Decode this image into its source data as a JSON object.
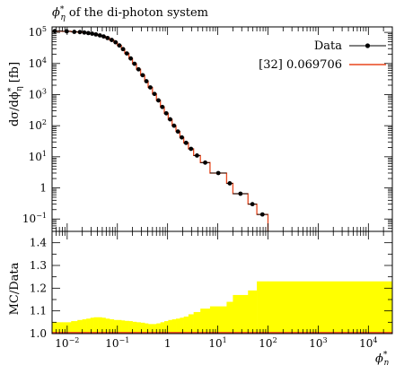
{
  "chart_data": {
    "type": "step",
    "title": "ϕ*η of the di-photon system",
    "title_parts": {
      "main": "ϕ",
      "sup": "*",
      "sub": "η",
      "rest": " of the di-photon system"
    },
    "xlabel": "ϕ*η",
    "xlabel_parts": {
      "main": "ϕ",
      "sup": "*",
      "sub": "η"
    },
    "ylabel": "dσ/dϕ*η [fb]",
    "ylabel_parts": {
      "pre": "dσ/dϕ",
      "sup": "*",
      "sub": "η",
      "post": " [fb]"
    },
    "ratio_ylabel": "MC/Data",
    "xscale": "log",
    "yscale": "log",
    "xlim": [
      0.005,
      30000
    ],
    "ylim": [
      0.04,
      150000
    ],
    "ratio_ylim": [
      1.0,
      1.45
    ],
    "x_ticks": [
      0.01,
      0.1,
      1,
      10,
      100,
      1000,
      10000
    ],
    "x_tick_labels": [
      "10⁻²",
      "10⁻¹",
      "1",
      "10¹",
      "10²",
      "10³",
      "10⁴"
    ],
    "x_tick_parts": [
      {
        "base": "10",
        "exp": "−2"
      },
      {
        "base": "10",
        "exp": "−1"
      },
      {
        "base": "1",
        "exp": ""
      },
      {
        "base": "10",
        "exp": "1"
      },
      {
        "base": "10",
        "exp": "2"
      },
      {
        "base": "10",
        "exp": "3"
      },
      {
        "base": "10",
        "exp": "4"
      }
    ],
    "y_ticks": [
      0.1,
      1,
      10,
      100,
      1000,
      10000,
      100000
    ],
    "y_tick_parts": [
      {
        "base": "10",
        "exp": "−1"
      },
      {
        "base": "1",
        "exp": ""
      },
      {
        "base": "10",
        "exp": "1"
      },
      {
        "base": "10",
        "exp": "2"
      },
      {
        "base": "10",
        "exp": "3"
      },
      {
        "base": "10",
        "exp": "4"
      },
      {
        "base": "10",
        "exp": "5"
      }
    ],
    "ratio_y_ticks": [
      1.0,
      1.1,
      1.2,
      1.3,
      1.4
    ],
    "ratio_y_tick_labels": [
      "1.0",
      "1.1",
      "1.2",
      "1.3",
      "1.4"
    ],
    "legend_position": "top-right",
    "series": [
      {
        "name": "Data",
        "style": "points-with-errors",
        "color": "#000000",
        "bins": [
          [
            0.004,
            0.008,
            110000
          ],
          [
            0.008,
            0.012,
            108000
          ],
          [
            0.012,
            0.016,
            104000
          ],
          [
            0.016,
            0.02,
            102000
          ],
          [
            0.02,
            0.024,
            99000
          ],
          [
            0.024,
            0.029,
            95000
          ],
          [
            0.029,
            0.034,
            91000
          ],
          [
            0.034,
            0.041,
            86000
          ],
          [
            0.041,
            0.049,
            80000
          ],
          [
            0.049,
            0.058,
            74000
          ],
          [
            0.058,
            0.07,
            66000
          ],
          [
            0.07,
            0.085,
            57000
          ],
          [
            0.085,
            0.1,
            48000
          ],
          [
            0.1,
            0.12,
            38000
          ],
          [
            0.12,
            0.14,
            29000
          ],
          [
            0.14,
            0.17,
            21000
          ],
          [
            0.17,
            0.2,
            14500
          ],
          [
            0.2,
            0.24,
            9800
          ],
          [
            0.24,
            0.29,
            6500
          ],
          [
            0.29,
            0.35,
            4200
          ],
          [
            0.35,
            0.41,
            2700
          ],
          [
            0.41,
            0.5,
            1700
          ],
          [
            0.5,
            0.6,
            1050
          ],
          [
            0.6,
            0.72,
            650
          ],
          [
            0.72,
            0.86,
            400
          ],
          [
            0.86,
            1.03,
            250
          ],
          [
            1.03,
            1.23,
            160
          ],
          [
            1.23,
            1.47,
            100
          ],
          [
            1.47,
            1.76,
            65
          ],
          [
            1.76,
            2.1,
            42
          ],
          [
            2.1,
            2.6,
            28
          ],
          [
            2.6,
            3.3,
            18
          ],
          [
            3.3,
            4.5,
            11
          ],
          [
            4.5,
            7.0,
            6.5
          ],
          [
            7.0,
            15.0,
            3.0
          ],
          [
            15.0,
            20.0,
            1.4
          ],
          [
            20.0,
            40.0,
            0.65
          ],
          [
            40.0,
            60.0,
            0.3
          ],
          [
            60.0,
            100.0,
            0.14
          ]
        ]
      },
      {
        "name": "[32] 0.069706",
        "style": "step",
        "color": "#e8471d",
        "ratio_center": 1.0,
        "uncertainty_color": "#ffff00",
        "ratio_band_upper": [
          1.05,
          1.05,
          1.055,
          1.06,
          1.063,
          1.066,
          1.07,
          1.072,
          1.072,
          1.07,
          1.066,
          1.063,
          1.06,
          1.06,
          1.058,
          1.056,
          1.055,
          1.052,
          1.05,
          1.048,
          1.045,
          1.042,
          1.042,
          1.045,
          1.05,
          1.055,
          1.06,
          1.063,
          1.066,
          1.07,
          1.075,
          1.085,
          1.095,
          1.11,
          1.12,
          1.14,
          1.17,
          1.19,
          1.23
        ]
      }
    ]
  }
}
